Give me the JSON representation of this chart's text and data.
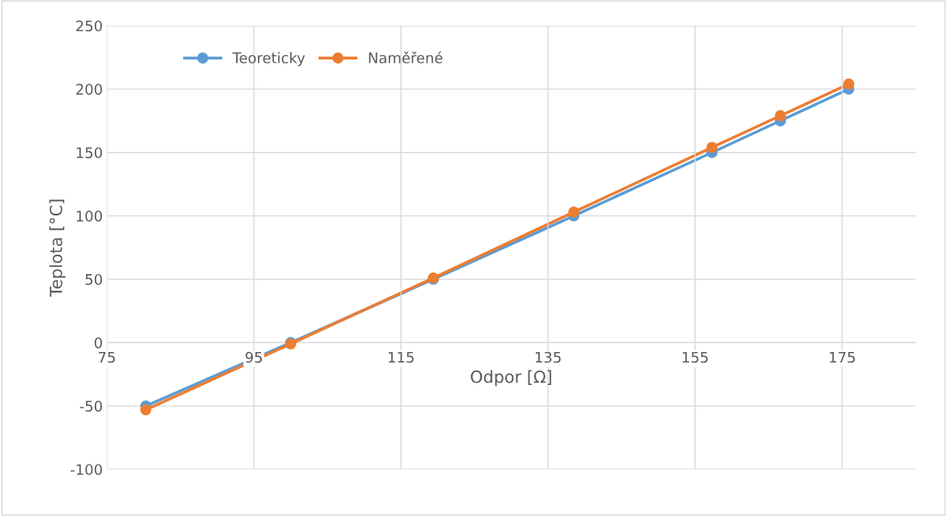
{
  "chart_data": {
    "type": "line",
    "xlabel": "Odpor [Ω]",
    "ylabel": "Teplota [°C]",
    "xlim": [
      75,
      185
    ],
    "xticks": [
      75,
      95,
      115,
      135,
      155,
      175
    ],
    "ylim": [
      -100,
      250
    ],
    "yticks": [
      -100,
      -50,
      0,
      50,
      100,
      150,
      200,
      250
    ],
    "grid": true,
    "legend": "top left",
    "marker": "circle",
    "line_style": "solid",
    "series": [
      {
        "name": "Teoreticky",
        "color": "#5b9bd5",
        "x": [
          80.3,
          100.0,
          119.4,
          138.5,
          157.3,
          166.6,
          175.9
        ],
        "values": [
          -50,
          0,
          50,
          100,
          150,
          175,
          200
        ]
      },
      {
        "name": "Naměřené",
        "color": "#ed7d31",
        "x": [
          80.3,
          100.0,
          119.4,
          138.5,
          157.3,
          166.6,
          175.9
        ],
        "values": [
          -53,
          -1,
          51,
          103,
          154,
          179,
          204
        ]
      }
    ]
  }
}
